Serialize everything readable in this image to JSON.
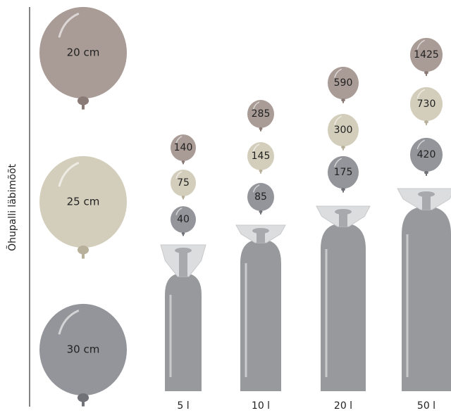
{
  "axis_label": "Õhupalli läbimõõt",
  "sizes": [
    "20 cm",
    "25 cm",
    "30 cm"
  ],
  "cylinders": [
    {
      "label": "5 l",
      "counts": [
        140,
        75,
        40
      ]
    },
    {
      "label": "10 l",
      "counts": [
        285,
        145,
        85
      ]
    },
    {
      "label": "20 l",
      "counts": [
        590,
        300,
        175
      ]
    },
    {
      "label": "50 l",
      "counts": [
        1425,
        730,
        420
      ]
    }
  ]
}
